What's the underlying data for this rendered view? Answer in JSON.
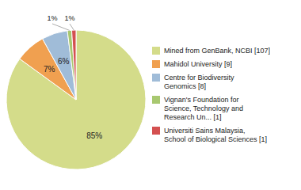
{
  "chart_data": {
    "type": "pie",
    "categories": [
      "Mined from GenBank, NCBI [107]",
      "Mahidol University [9]",
      "Centre for Biodiversity\nGenomics [8]",
      "Vignan's Foundation for\nScience, Technology and\nResearch Un... [1]",
      "Universiti Sains Malaysia,\nSchool of Biological Sciences [1]"
    ],
    "values": [
      85,
      7,
      6,
      1,
      1
    ],
    "value_labels": [
      "85%",
      "7%",
      "6%",
      "1%",
      "1%"
    ],
    "colors": [
      "#d4dc8a",
      "#f0a050",
      "#a0bcd8",
      "#a8c870",
      "#d45050"
    ],
    "data_labels": true,
    "legend": "right"
  }
}
